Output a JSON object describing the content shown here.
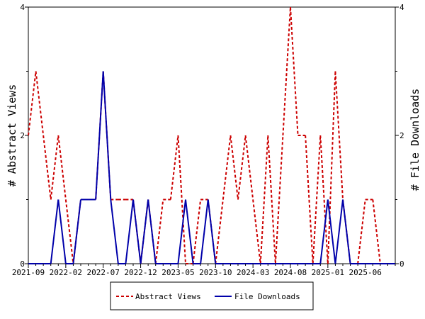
{
  "chart_data": {
    "type": "line",
    "title": "",
    "ylabel_left": "# Abstract Views",
    "ylabel_right": "# File Downloads",
    "ylim_left": [
      0,
      4
    ],
    "ylim_right": [
      0,
      4
    ],
    "y_ticks_left": [
      "0",
      "2",
      "4"
    ],
    "y_ticks_right": [
      "0",
      "2",
      "4"
    ],
    "x_tick_labels": [
      "2021-09",
      "2022-02",
      "2022-07",
      "2022-12",
      "2023-05",
      "2023-10",
      "2024-03",
      "2024-08",
      "2025-01",
      "2025-06"
    ],
    "x_tick_step_months": 5,
    "x_range": [
      "2021-09",
      "2025-10"
    ],
    "grid": false,
    "legend_position": "bottom",
    "series": [
      {
        "name": "Abstract Views",
        "color": "#cc0000",
        "style": "dashed",
        "axis": "left",
        "x": [
          "2021-09",
          "2021-10",
          "2021-11",
          "2021-12",
          "2022-01",
          "2022-02",
          "2022-03",
          "2022-04",
          "2022-05",
          "2022-06",
          "2022-07",
          "2022-08",
          "2022-09",
          "2022-10",
          "2022-11",
          "2022-12",
          "2023-01",
          "2023-02",
          "2023-03",
          "2023-04",
          "2023-05",
          "2023-06",
          "2023-07",
          "2023-08",
          "2023-09",
          "2023-10",
          "2023-11",
          "2023-12",
          "2024-01",
          "2024-02",
          "2024-03",
          "2024-04",
          "2024-05",
          "2024-06",
          "2024-07",
          "2024-08",
          "2024-09",
          "2024-10",
          "2024-11",
          "2024-12",
          "2025-01",
          "2025-02",
          "2025-03",
          "2025-04",
          "2025-05",
          "2025-06",
          "2025-07",
          "2025-08",
          "2025-09",
          "2025-10"
        ],
        "values": [
          2,
          3,
          2,
          1,
          2,
          1,
          0,
          1,
          1,
          1,
          3,
          1,
          1,
          1,
          1,
          0,
          1,
          0,
          1,
          1,
          2,
          0,
          0,
          1,
          1,
          0,
          1,
          2,
          1,
          2,
          1,
          0,
          2,
          0,
          2,
          4,
          2,
          2,
          0,
          2,
          0,
          3,
          1,
          0,
          0,
          1,
          1,
          0,
          0,
          0
        ]
      },
      {
        "name": "File Downloads",
        "color": "#0000aa",
        "style": "solid",
        "axis": "right",
        "x": [
          "2021-09",
          "2021-10",
          "2021-11",
          "2021-12",
          "2022-01",
          "2022-02",
          "2022-03",
          "2022-04",
          "2022-05",
          "2022-06",
          "2022-07",
          "2022-08",
          "2022-09",
          "2022-10",
          "2022-11",
          "2022-12",
          "2023-01",
          "2023-02",
          "2023-03",
          "2023-04",
          "2023-05",
          "2023-06",
          "2023-07",
          "2023-08",
          "2023-09",
          "2023-10",
          "2023-11",
          "2023-12",
          "2024-01",
          "2024-02",
          "2024-03",
          "2024-04",
          "2024-05",
          "2024-06",
          "2024-07",
          "2024-08",
          "2024-09",
          "2024-10",
          "2024-11",
          "2024-12",
          "2025-01",
          "2025-02",
          "2025-03",
          "2025-04",
          "2025-05",
          "2025-06",
          "2025-07",
          "2025-08",
          "2025-09",
          "2025-10"
        ],
        "values": [
          0,
          0,
          0,
          0,
          1,
          0,
          0,
          1,
          1,
          1,
          3,
          1,
          0,
          0,
          1,
          0,
          1,
          0,
          0,
          0,
          0,
          1,
          0,
          0,
          1,
          0,
          0,
          0,
          0,
          0,
          0,
          0,
          0,
          0,
          0,
          0,
          0,
          0,
          0,
          0,
          1,
          0,
          1,
          0,
          0,
          0,
          0,
          0,
          0,
          0
        ]
      }
    ]
  }
}
